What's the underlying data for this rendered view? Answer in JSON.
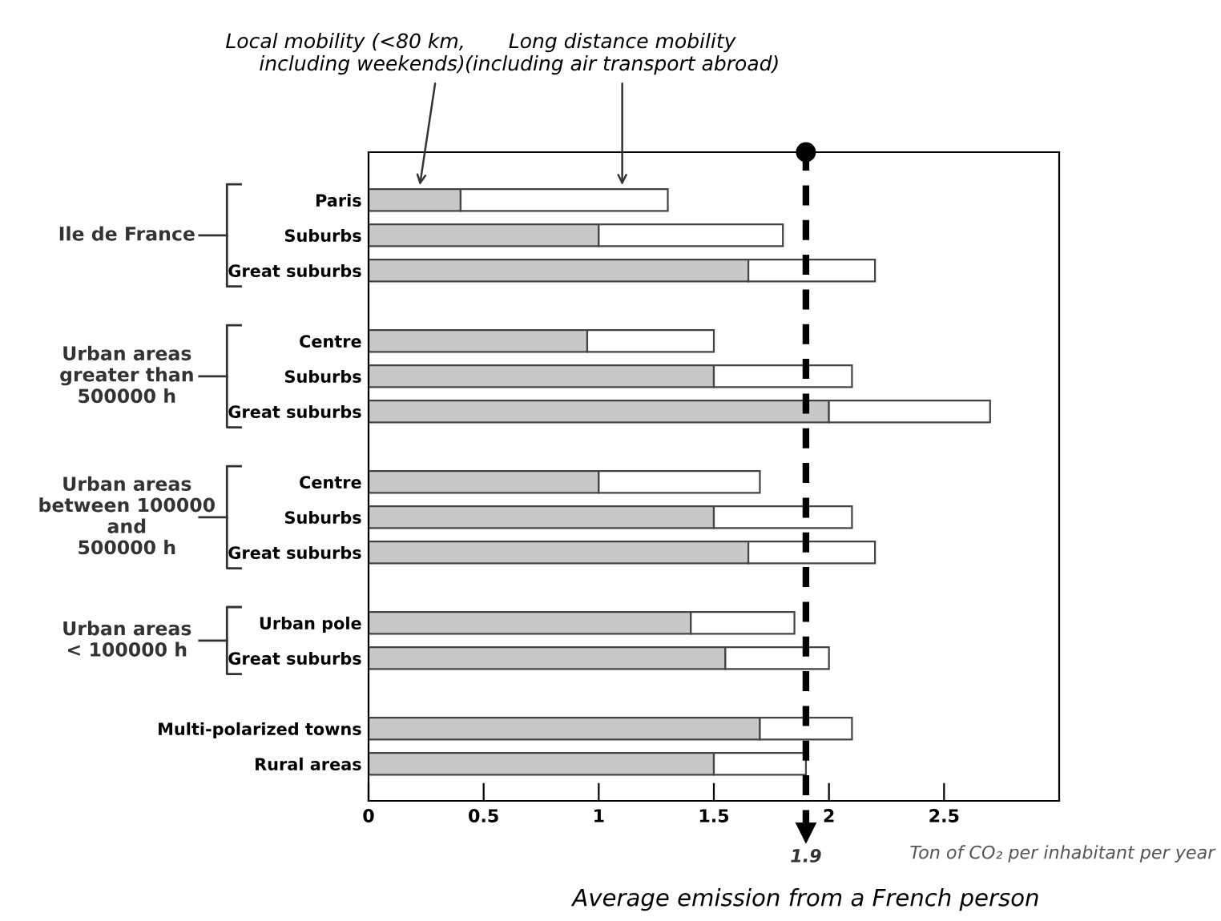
{
  "chart_data": {
    "type": "bar",
    "orientation": "horizontal",
    "stacked": true,
    "categories": [
      "Paris",
      "Suburbs",
      "Great suburbs",
      null,
      "Centre",
      "Suburbs",
      "Great suburbs",
      null,
      "Centre",
      "Suburbs",
      "Great suburbs",
      null,
      "Urban pole",
      "Great suburbs",
      null,
      "Multi-polarized towns",
      "Rural areas"
    ],
    "series": [
      {
        "name": "Local mobility (<80 km,\nincluding weekends)",
        "color": "#c8c8c8",
        "values": [
          0.4,
          1.0,
          1.65,
          null,
          0.95,
          1.5,
          2.0,
          null,
          1.0,
          1.5,
          1.65,
          null,
          1.4,
          1.55,
          null,
          1.7,
          1.5
        ]
      },
      {
        "name": "Long distance mobility\n(including air transport abroad)",
        "color": "#ffffff",
        "values": [
          0.9,
          0.8,
          0.55,
          null,
          0.55,
          0.6,
          0.7,
          null,
          0.7,
          0.6,
          0.55,
          null,
          0.45,
          0.45,
          null,
          0.4,
          0.4
        ]
      }
    ],
    "xlim": [
      0,
      3.0
    ],
    "xticks": [
      0,
      0.5,
      1,
      1.5,
      2,
      2.5
    ],
    "xlabel": "Ton of CO₂ per inhabitant per year",
    "ref_lines": [
      {
        "axis": "x",
        "value": 1.9,
        "label": "1.9",
        "line_style": "dashed",
        "color": "#000000"
      }
    ],
    "annotations": [
      "Ile de France",
      "Urban areas\ngreater than\n500000 h",
      "Urban areas\nbetween 100000\nand\n500000 h",
      "Urban areas\n< 100000 h",
      "Average emission from a French person"
    ],
    "grid": false,
    "legend": false
  }
}
